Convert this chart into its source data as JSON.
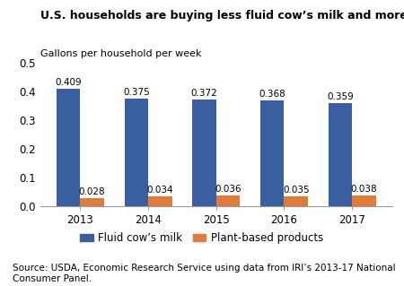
{
  "title": "U.S. households are buying less fluid cow’s milk and more plant-based products",
  "ylabel": "Gallons per household per week",
  "years": [
    2013,
    2014,
    2015,
    2016,
    2017
  ],
  "milk_values": [
    0.409,
    0.375,
    0.372,
    0.368,
    0.359
  ],
  "plant_values": [
    0.028,
    0.034,
    0.036,
    0.035,
    0.038
  ],
  "milk_color": "#3A5FA0",
  "plant_color": "#E07B39",
  "ylim": [
    0,
    0.5
  ],
  "yticks": [
    0.0,
    0.1,
    0.2,
    0.3,
    0.4,
    0.5
  ],
  "bar_width": 0.35,
  "legend_milk": "Fluid cow’s milk",
  "legend_plant": "Plant-based products",
  "source_text": "Source: USDA, Economic Research Service using data from IRI’s 2013-17 National Consumer Panel.",
  "title_fontsize": 9.0,
  "label_fontsize": 8.0,
  "tick_fontsize": 8.5,
  "annotation_fontsize": 7.5,
  "legend_fontsize": 8.5,
  "source_fontsize": 7.5,
  "background_color": "#FFFFFF"
}
